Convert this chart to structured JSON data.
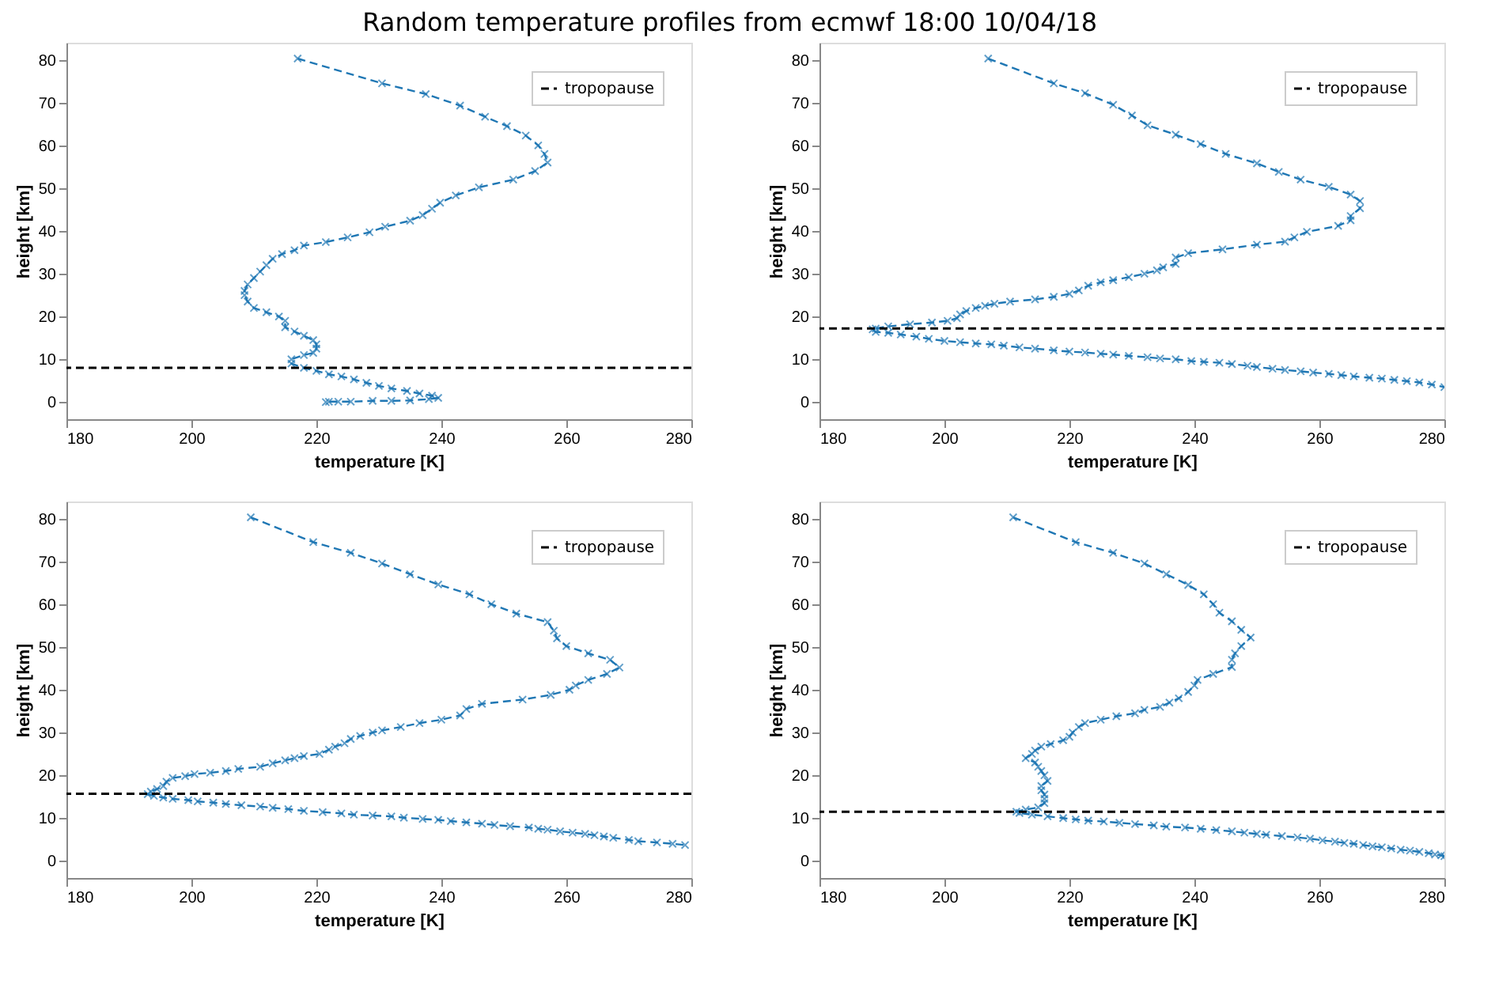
{
  "chart_data": [
    {
      "type": "line",
      "title": "Random temperature profiles from ecmwf 18:00 10/04/18",
      "xlabel": "temperature [K]",
      "ylabel": "height [km]",
      "xlim": [
        180,
        280
      ],
      "ylim": [
        -4,
        84
      ],
      "xticks": [
        180,
        200,
        220,
        240,
        260,
        280
      ],
      "yticks": [
        0,
        10,
        20,
        30,
        40,
        50,
        60,
        70,
        80
      ],
      "grid": false,
      "legend": "top right",
      "marker": "cross",
      "line_style": "dashed",
      "series": [
        {
          "color": "#1f77b4",
          "x": [
            217,
            230.5,
            237.5,
            243,
            247,
            250.5,
            253.5,
            255.5,
            256.5,
            257,
            255,
            251.5,
            246,
            242.3,
            239.8,
            238.5,
            237,
            235,
            231,
            228.5,
            225,
            221.5,
            218,
            216.5,
            214.5,
            213,
            212,
            211,
            210,
            209,
            208.5,
            208.5,
            209,
            210,
            212,
            214,
            215,
            215,
            216.5,
            218,
            219.5,
            220,
            220,
            219.5,
            218,
            216,
            216,
            218,
            220,
            222,
            224,
            226,
            228,
            230,
            232,
            234.5,
            236.5,
            238.5,
            239.5,
            238,
            235,
            232,
            229,
            225.5,
            223.5,
            222,
            221.5
          ],
          "values": [
            80.3,
            74.5,
            72,
            69.3,
            66.7,
            64.5,
            62.3,
            60,
            58,
            56,
            54,
            52,
            50.2,
            48.3,
            46.6,
            45.2,
            43.7,
            42.4,
            41,
            39.7,
            38.5,
            37.4,
            36.6,
            35.5,
            34.6,
            33.5,
            32,
            30.5,
            29,
            27.5,
            26,
            25,
            23.5,
            22,
            21,
            20,
            19,
            17.5,
            16.5,
            15.5,
            14.5,
            13.5,
            12.5,
            11.5,
            11,
            10,
            9,
            8,
            7.3,
            6.5,
            6,
            5.3,
            4.5,
            3.8,
            3.2,
            2.6,
            2,
            1.5,
            1,
            0.7,
            0.4,
            0.3,
            0.3,
            0.1,
            0.1,
            0.1,
            0
          ]
        }
      ],
      "ref_lines": [
        {
          "axis": "y",
          "value": 8,
          "label": "tropopause",
          "color": "#000000",
          "line_style": "dashed"
        }
      ]
    },
    {
      "type": "line",
      "xlabel": "temperature [K]",
      "ylabel": "height [km]",
      "xlim": [
        180,
        280
      ],
      "ylim": [
        -4,
        84
      ],
      "xticks": [
        180,
        200,
        220,
        240,
        260,
        280
      ],
      "yticks": [
        0,
        10,
        20,
        30,
        40,
        50,
        60,
        70,
        80
      ],
      "grid": false,
      "legend": "top right",
      "marker": "cross",
      "line_style": "dashed",
      "series": [
        {
          "color": "#1f77b4",
          "x": [
            207,
            217.5,
            222.5,
            227,
            230,
            232.5,
            237,
            241,
            245,
            250,
            253.5,
            257,
            261.5,
            265,
            266.5,
            266.5,
            265,
            265,
            263,
            258,
            256,
            254.5,
            250,
            244.5,
            239,
            237,
            237,
            235,
            234,
            232,
            229.5,
            227,
            225,
            223,
            221.5,
            220,
            217.5,
            214.5,
            210.5,
            208,
            206.5,
            205,
            203.5,
            202.5,
            202,
            200.5,
            198,
            194.5,
            191,
            189,
            188.5,
            189,
            191,
            193,
            195.5,
            197.5,
            200,
            202.5,
            205,
            207.5,
            209.5,
            212,
            214.5,
            217.5,
            220,
            222.5,
            225,
            227,
            229.5,
            232.5,
            234.5,
            237,
            239.5,
            241.5,
            244,
            246,
            248.5,
            250,
            252.5,
            254.5,
            257,
            259,
            261.5,
            263.5,
            265.5,
            268,
            270,
            272,
            274,
            276,
            278,
            280
          ],
          "values": [
            80.3,
            74.5,
            72.2,
            69.5,
            67,
            64.7,
            62.5,
            60.3,
            58,
            55.8,
            53.8,
            52,
            50.3,
            48.5,
            47,
            45.3,
            43.5,
            42.5,
            41.2,
            39.8,
            38.5,
            37.5,
            36.8,
            35.7,
            34.8,
            33.8,
            32.3,
            31.5,
            30.8,
            30,
            29.2,
            28.5,
            28,
            27.2,
            26.1,
            25.3,
            24.6,
            24,
            23.5,
            23,
            22.5,
            22,
            21.3,
            20.5,
            19.6,
            19,
            18.6,
            18.2,
            17.7,
            17.2,
            17,
            16.4,
            16.2,
            15.8,
            15.3,
            14.8,
            14.3,
            14,
            13.7,
            13.5,
            13.2,
            12.8,
            12.5,
            12.1,
            11.8,
            11.6,
            11.3,
            11.1,
            10.8,
            10.5,
            10.2,
            10,
            9.6,
            9.4,
            9.2,
            8.9,
            8.5,
            8.2,
            7.8,
            7.5,
            7.2,
            6.9,
            6.6,
            6.3,
            6,
            5.7,
            5.5,
            5.2,
            4.9,
            4.6,
            4.1,
            3.5
          ]
        }
      ],
      "ref_lines": [
        {
          "axis": "y",
          "value": 17.2,
          "label": "tropopause",
          "color": "#000000",
          "line_style": "dashed"
        }
      ]
    },
    {
      "type": "line",
      "xlabel": "temperature [K]",
      "ylabel": "height [km]",
      "xlim": [
        180,
        280
      ],
      "ylim": [
        -4,
        84
      ],
      "xticks": [
        180,
        200,
        220,
        240,
        260,
        280
      ],
      "yticks": [
        0,
        10,
        20,
        30,
        40,
        50,
        60,
        70,
        80
      ],
      "grid": false,
      "legend": "top right",
      "marker": "cross",
      "line_style": "dashed",
      "series": [
        {
          "color": "#1f77b4",
          "x": [
            209.5,
            219.5,
            225.5,
            230.5,
            235,
            239.5,
            244.5,
            248,
            252,
            257,
            258,
            258.5,
            260,
            263.5,
            267,
            268.5,
            266.5,
            263.5,
            261.5,
            260.5,
            257.5,
            253,
            246.5,
            244,
            243,
            240,
            236.5,
            233.5,
            230.5,
            229,
            227,
            225.5,
            224.5,
            223,
            222,
            220.5,
            218,
            216.5,
            215,
            213,
            211,
            207.5,
            205.5,
            203,
            200.5,
            199,
            197,
            196,
            195.5,
            194.5,
            193.5,
            193,
            194,
            195.5,
            197,
            199.5,
            201,
            203.5,
            205.5,
            208,
            211,
            213,
            215.5,
            218,
            221,
            224,
            226,
            229,
            232,
            234,
            237,
            239.5,
            241.5,
            244,
            246.5,
            248.5,
            251,
            254,
            255.5,
            257,
            259,
            261,
            263,
            264.5,
            266,
            267.5,
            270,
            271.5,
            274.5,
            277,
            279
          ],
          "values": [
            80.3,
            74.5,
            72,
            69.5,
            67,
            64.6,
            62.3,
            60,
            57.8,
            55.8,
            53.8,
            52,
            50.2,
            48.5,
            47,
            45.2,
            43.7,
            42.3,
            41,
            40,
            38.8,
            37.7,
            36.7,
            35.5,
            34,
            33,
            32.2,
            31.3,
            30.5,
            30,
            29.2,
            28.5,
            27.5,
            26.7,
            26,
            25,
            24.5,
            24,
            23.5,
            22.8,
            22,
            21.5,
            21,
            20.6,
            20.3,
            19.8,
            19.4,
            18.5,
            17.5,
            16.8,
            16.2,
            15.6,
            15.2,
            14.8,
            14.5,
            14.2,
            13.9,
            13.6,
            13.3,
            13,
            12.7,
            12.4,
            12.1,
            11.7,
            11.4,
            11.1,
            10.8,
            10.6,
            10.4,
            10.1,
            9.8,
            9.6,
            9.3,
            9,
            8.7,
            8.4,
            8.1,
            7.8,
            7.5,
            7.3,
            6.9,
            6.6,
            6.3,
            6,
            5.7,
            5.4,
            4.9,
            4.6,
            4.3,
            4,
            3.7
          ]
        }
      ],
      "ref_lines": [
        {
          "axis": "y",
          "value": 15.7,
          "label": "tropopause",
          "color": "#000000",
          "line_style": "dashed"
        }
      ]
    },
    {
      "type": "line",
      "xlabel": "temperature [K]",
      "ylabel": "height [km]",
      "xlim": [
        180,
        280
      ],
      "ylim": [
        -4,
        84
      ],
      "xticks": [
        180,
        200,
        220,
        240,
        260,
        280
      ],
      "yticks": [
        0,
        10,
        20,
        30,
        40,
        50,
        60,
        70,
        80
      ],
      "grid": false,
      "legend": "top right",
      "marker": "cross",
      "line_style": "dashed",
      "series": [
        {
          "color": "#1f77b4",
          "x": [
            211,
            221,
            227,
            232,
            235.5,
            239,
            241.5,
            243,
            244,
            246,
            247.5,
            249,
            247.5,
            246.5,
            246,
            246,
            243,
            240.5,
            240,
            239,
            237.5,
            236,
            234.5,
            232,
            230.5,
            227.5,
            225,
            222.5,
            221.5,
            220.5,
            220,
            219,
            217,
            215.5,
            214.5,
            214,
            213,
            214.5,
            215,
            215.5,
            216,
            216.5,
            215.5,
            215.5,
            216,
            216,
            216,
            215,
            213,
            211.5,
            212,
            214,
            216.5,
            219,
            221,
            223,
            225.5,
            228,
            230.5,
            233.5,
            235.5,
            238.5,
            241,
            243.5,
            246,
            248,
            250,
            251.5,
            254,
            256.5,
            258.5,
            260.5,
            262.5,
            264,
            265.5,
            267,
            268.5,
            270,
            271.5,
            273,
            274.5,
            276,
            277.5,
            278.5,
            279.5,
            280
          ],
          "values": [
            80.3,
            74.5,
            72,
            69.5,
            67,
            64.5,
            62.3,
            60,
            58,
            56,
            54,
            52.2,
            50.2,
            48.5,
            47,
            45.3,
            43.7,
            42.3,
            41,
            39.5,
            38,
            37,
            36,
            35.3,
            34.5,
            33.8,
            33,
            32.2,
            31.3,
            30,
            29,
            28.2,
            27.3,
            26.7,
            25.8,
            25,
            24,
            23,
            22,
            21,
            20,
            18.7,
            17.5,
            16.5,
            15.5,
            14.5,
            13.5,
            12.5,
            12,
            11.5,
            11.2,
            10.8,
            10.4,
            10,
            9.7,
            9.4,
            9.2,
            8.9,
            8.6,
            8.3,
            8,
            7.8,
            7.5,
            7.2,
            6.9,
            6.6,
            6.3,
            6.1,
            5.8,
            5.5,
            5.2,
            4.8,
            4.5,
            4.2,
            4,
            3.7,
            3.4,
            3.2,
            2.9,
            2.6,
            2.4,
            2.1,
            1.8,
            1.5,
            1.3,
            1.1
          ]
        }
      ],
      "ref_lines": [
        {
          "axis": "y",
          "value": 11.5,
          "label": "tropopause",
          "color": "#000000",
          "line_style": "dashed"
        }
      ]
    }
  ]
}
